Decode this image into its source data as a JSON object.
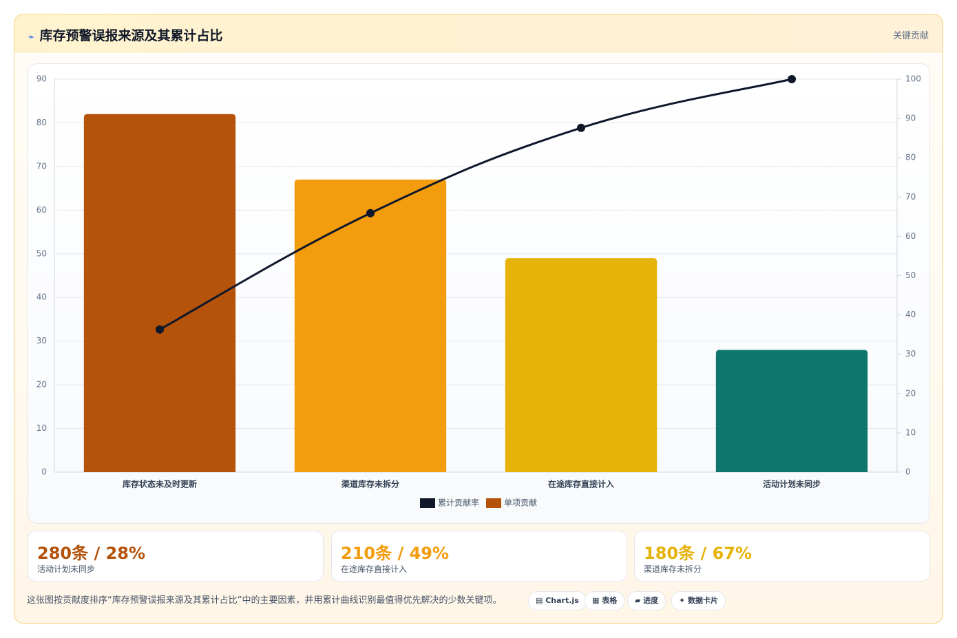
{
  "header": {
    "icon": "⌁",
    "title": "库存预警误报来源及其累计占比",
    "badge": "关键贡献"
  },
  "chart_data": {
    "type": "pareto",
    "categories": [
      "库存状态未及时更新",
      "渠道库存未拆分",
      "在途库存直接计入",
      "活动计划未同步"
    ],
    "series": [
      {
        "name": "累计贡献率",
        "type": "line",
        "axis": "y2",
        "color": "#0f172a",
        "values": [
          36.3,
          65.9,
          87.6,
          100
        ]
      },
      {
        "name": "单项贡献",
        "type": "bar",
        "color": "#b45309",
        "colors": [
          "#b45309",
          "#f29c0e",
          "#e6b30a",
          "#0f766e"
        ],
        "values": [
          82,
          67,
          49,
          28
        ]
      }
    ],
    "ylim": [
      0,
      90
    ],
    "yticks": [
      0,
      10,
      20,
      30,
      40,
      50,
      60,
      70,
      80,
      90
    ],
    "y2lim": [
      0,
      100
    ],
    "y2ticks": [
      0,
      10,
      20,
      30,
      40,
      50,
      60,
      70,
      80,
      90,
      100
    ],
    "grid": true,
    "legend": "bottom"
  },
  "cards": [
    {
      "value": "280条 / 28%",
      "label": "活动计划未同步",
      "color": "#b45309"
    },
    {
      "value": "210条 / 49%",
      "label": "在途库存直接计入",
      "color": "#f29c0e"
    },
    {
      "value": "180条 / 67%",
      "label": "渠道库存未拆分",
      "color": "#e6b30a"
    }
  ],
  "footer": {
    "text": "这张图按贡献度排序“库存预警误报来源及其累计占比”中的主要因素，并用累计曲线识别最值得优先解决的少数关键项。",
    "buttons": [
      "Chart.js",
      "表格",
      "进度",
      "数据卡片"
    ]
  }
}
